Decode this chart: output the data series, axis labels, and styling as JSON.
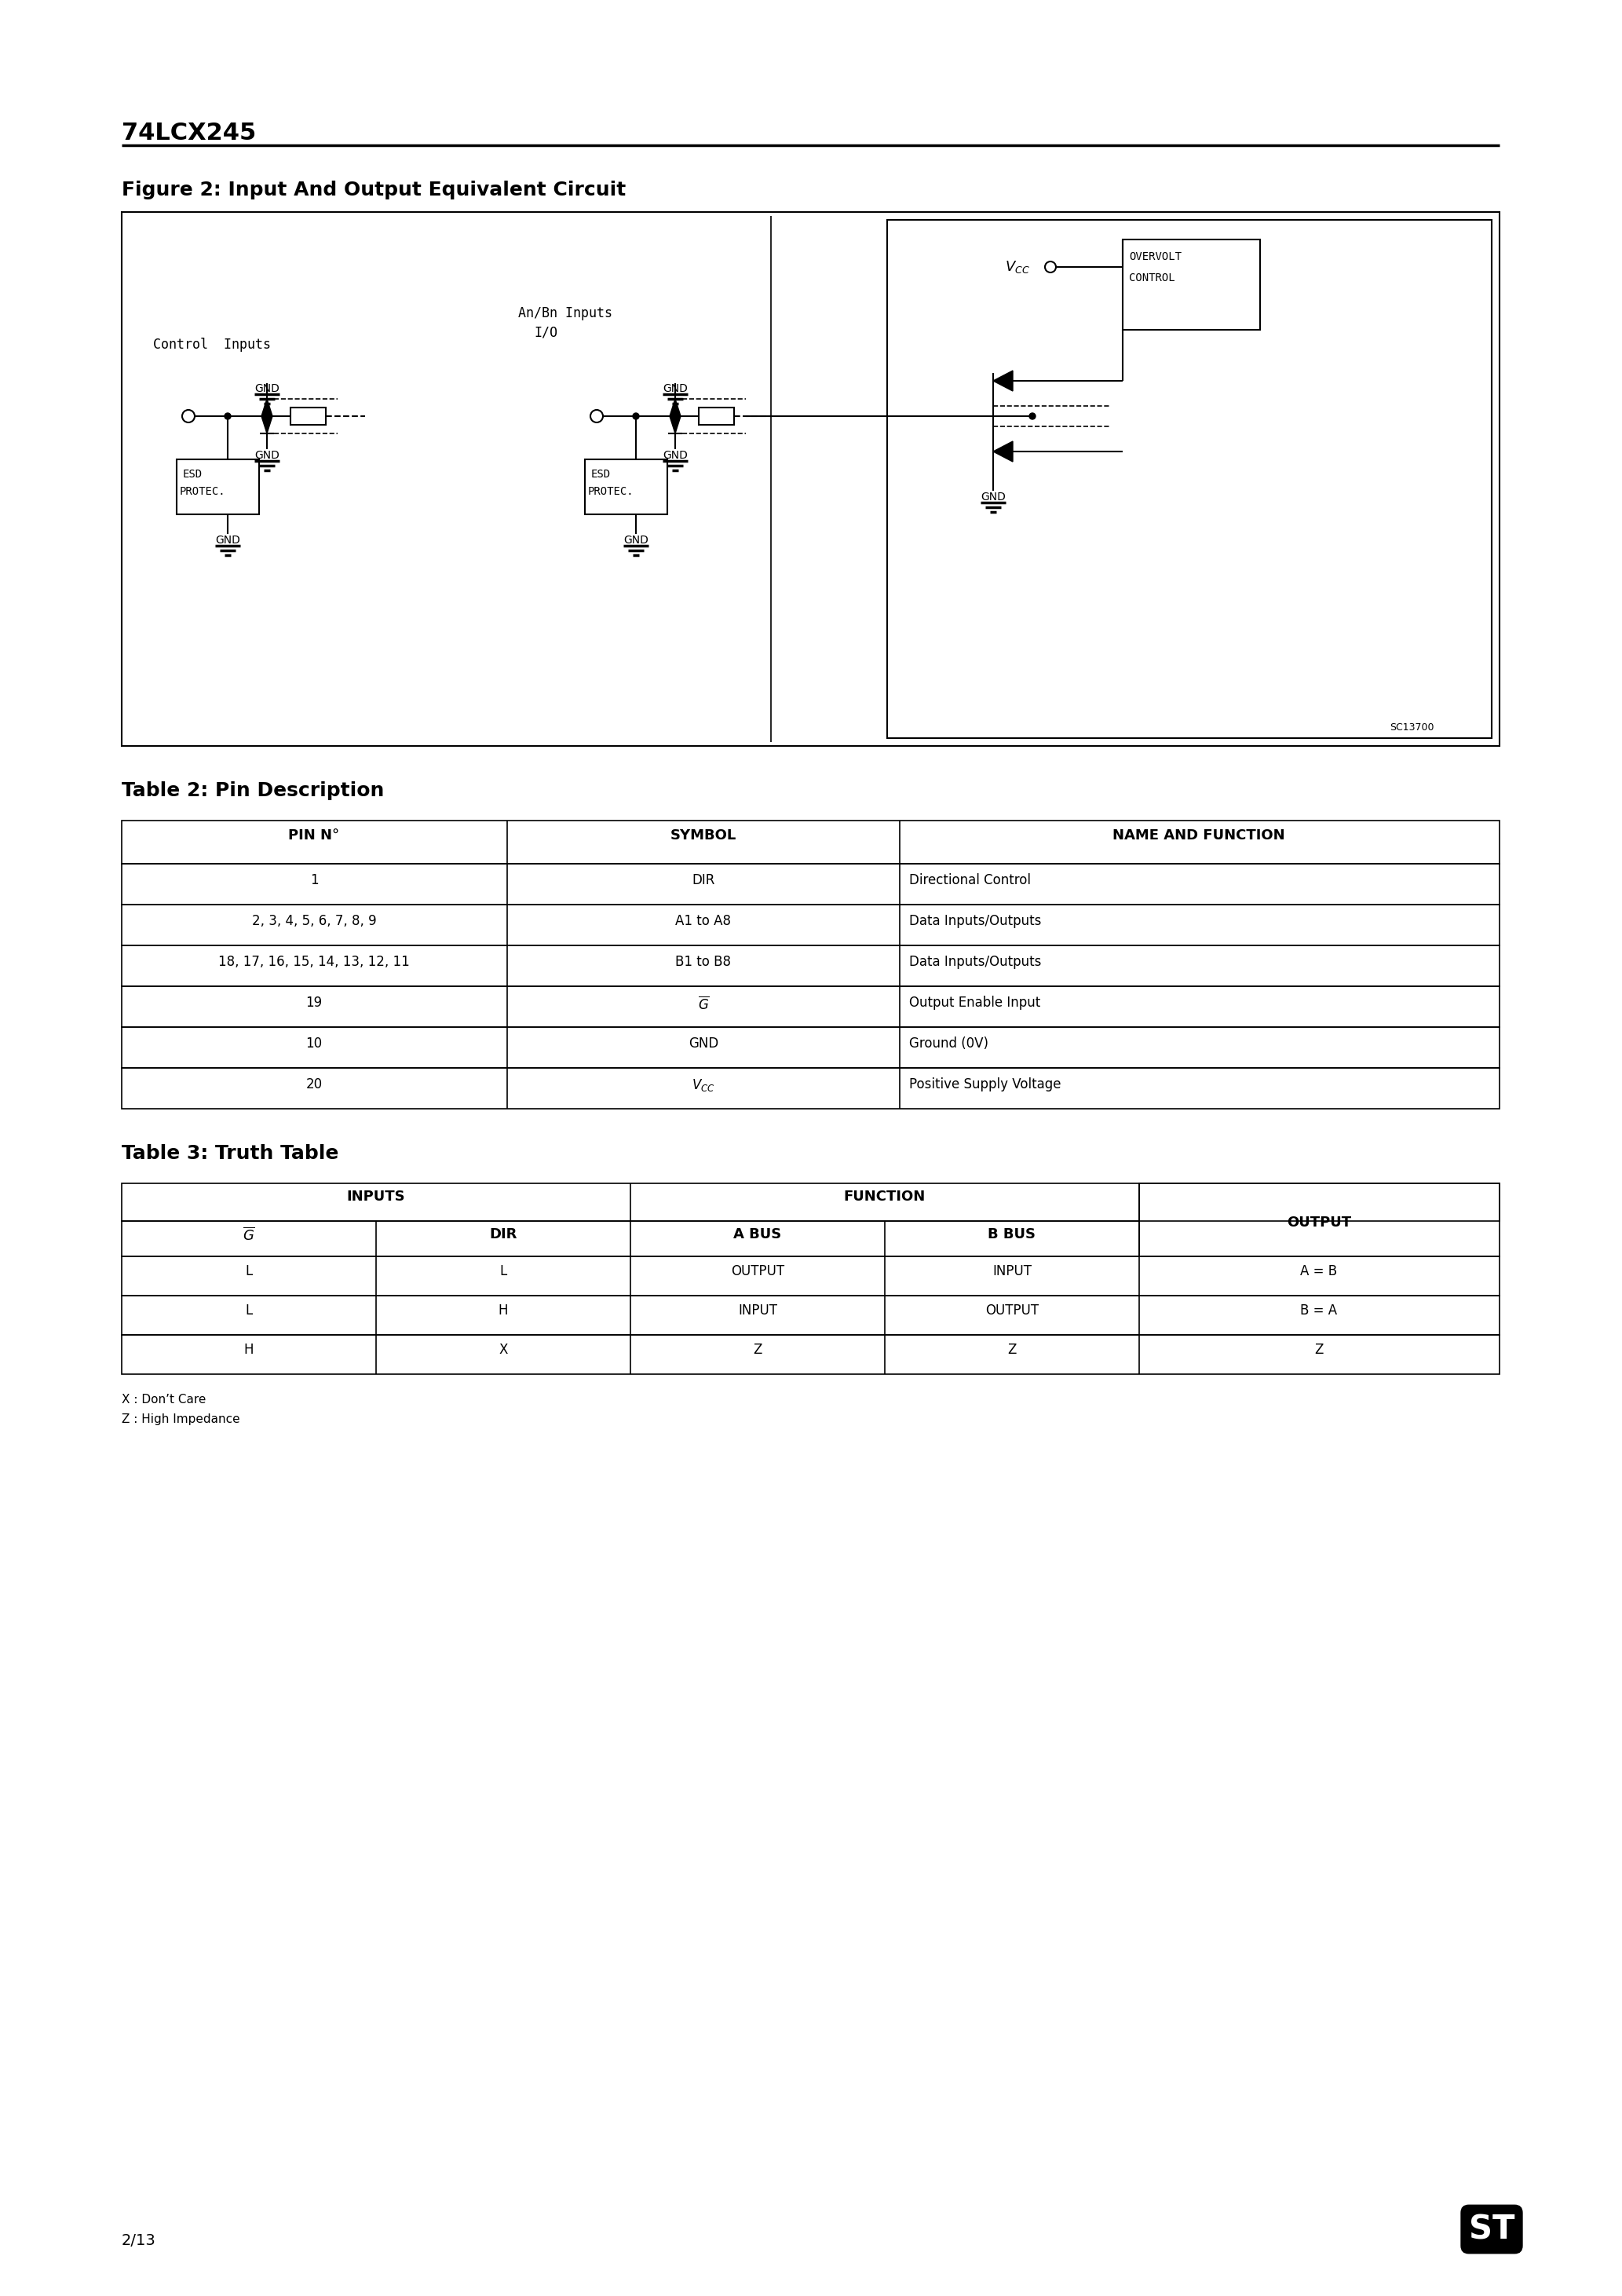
{
  "page_title": "74LCX245",
  "figure_title": "Figure 2: Input And Output Equivalent Circuit",
  "table2_title": "Table 2: Pin Description",
  "table2_headers": [
    "PIN N°",
    "SYMBOL",
    "NAME AND FUNCTION"
  ],
  "table2_rows": [
    [
      "1",
      "DIR",
      "Directional Control"
    ],
    [
      "2, 3, 4, 5, 6, 7, 8, 9",
      "A1 to A8",
      "Data Inputs/Outputs"
    ],
    [
      "18, 17, 16, 15, 14, 13, 12, 11",
      "B1 to B8",
      "Data Inputs/Outputs"
    ],
    [
      "19",
      "G_bar",
      "Output Enable Input"
    ],
    [
      "10",
      "GND",
      "Ground (0V)"
    ],
    [
      "20",
      "V_CC",
      "Positive Supply Voltage"
    ]
  ],
  "table3_title": "Table 3: Truth Table",
  "table3_rows": [
    [
      "L",
      "L",
      "OUTPUT",
      "INPUT",
      "A = B"
    ],
    [
      "L",
      "H",
      "INPUT",
      "OUTPUT",
      "B = A"
    ],
    [
      "H",
      "X",
      "Z",
      "Z",
      "Z"
    ]
  ],
  "footnotes": [
    "X : Don’t Care",
    "Z : High Impedance"
  ],
  "page_number": "2/13",
  "background_color": "#ffffff"
}
